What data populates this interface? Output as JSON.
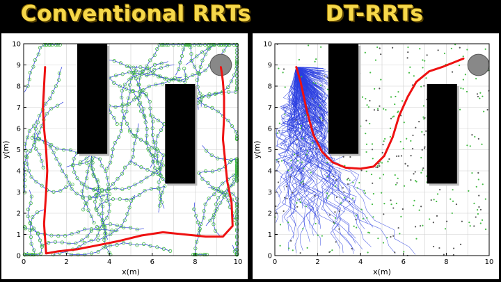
{
  "titles": {
    "left": "Conventional RRTs",
    "right": "DT-RRTs"
  },
  "colors": {
    "title": "#f6d84a",
    "path": "#ee1111",
    "tree": "#2233dd",
    "nodes": "#44bb44",
    "obstacle": "#000000",
    "goal": "#888888"
  },
  "chart_data": [
    {
      "type": "line",
      "title": "Conventional RRTs",
      "xlabel": "x(m)",
      "ylabel": "y(m)",
      "xlim": [
        0,
        10
      ],
      "ylim": [
        0,
        10
      ],
      "xticks": [
        "0",
        "2",
        "4",
        "6",
        "8",
        "10"
      ],
      "yticks": [
        "0",
        "1",
        "2",
        "3",
        "4",
        "5",
        "6",
        "7",
        "8",
        "9",
        "10"
      ],
      "grid": true,
      "obstacles": [
        {
          "x": [
            2.5,
            3.9
          ],
          "y": [
            4.8,
            10
          ]
        },
        {
          "x": [
            6.6,
            8.0
          ],
          "y": [
            3.4,
            8.1
          ]
        }
      ],
      "goal_region": {
        "x": 9.2,
        "y": 9.0,
        "r": 0.5
      },
      "series": [
        {
          "x": [
            1.0,
            0.95,
            0.9,
            0.95,
            1.05,
            1.1,
            1.05,
            0.95,
            1.05,
            1.6,
            2.5,
            3.5,
            4.5,
            5.5,
            6.5,
            7.5,
            8.5,
            9.3,
            9.75,
            9.7,
            9.6,
            9.5,
            9.4,
            9.3,
            9.35,
            9.35,
            9.3,
            9.25,
            9.2
          ],
          "y": [
            8.9,
            8.0,
            7.0,
            6.0,
            5.0,
            4.0,
            3.0,
            1.5,
            0.1,
            0.2,
            0.3,
            0.5,
            0.7,
            0.95,
            1.1,
            1.0,
            0.9,
            0.9,
            1.4,
            2.5,
            3.0,
            3.5,
            4.5,
            5.5,
            6.5,
            7.5,
            8.2,
            8.6,
            8.9
          ]
        }
      ]
    },
    {
      "type": "line",
      "title": "DT-RRTs",
      "xlabel": "x(m)",
      "ylabel": "y(m)",
      "xlim": [
        0,
        10
      ],
      "ylim": [
        0,
        10
      ],
      "xticks": [
        "0",
        "2",
        "4",
        "6",
        "8",
        "10"
      ],
      "yticks": [
        "0",
        "1",
        "2",
        "3",
        "4",
        "5",
        "6",
        "7",
        "8",
        "9",
        "10"
      ],
      "grid": true,
      "obstacles": [
        {
          "x": [
            2.5,
            3.9
          ],
          "y": [
            4.8,
            10
          ]
        },
        {
          "x": [
            7.1,
            8.5
          ],
          "y": [
            3.4,
            8.1
          ]
        }
      ],
      "goal_region": {
        "x": 9.5,
        "y": 9.0,
        "r": 0.5
      },
      "series": [
        {
          "x": [
            1.0,
            1.2,
            1.5,
            1.8,
            2.2,
            2.7,
            3.3,
            4.0,
            4.6,
            5.1,
            5.5,
            5.8,
            6.2,
            6.6,
            7.2,
            7.8,
            8.3,
            8.8
          ],
          "y": [
            8.9,
            8.2,
            6.8,
            5.7,
            4.9,
            4.4,
            4.15,
            4.1,
            4.2,
            4.7,
            5.6,
            6.6,
            7.5,
            8.2,
            8.7,
            8.9,
            9.1,
            9.3
          ]
        }
      ]
    }
  ]
}
